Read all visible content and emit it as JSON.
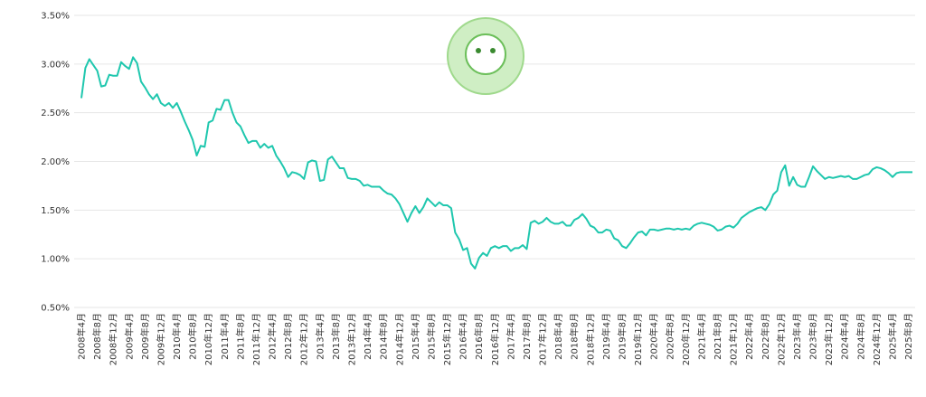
{
  "chart_data": {
    "type": "line",
    "categories": [
      "2008年4月",
      null,
      null,
      null,
      "2008年8月",
      null,
      null,
      null,
      "2008年12月",
      null,
      null,
      null,
      "2009年4月",
      null,
      null,
      null,
      "2009年8月",
      null,
      null,
      null,
      "2009年12月",
      null,
      null,
      null,
      "2010年4月",
      null,
      null,
      null,
      "2010年8月",
      null,
      null,
      null,
      "2010年12月",
      null,
      null,
      null,
      "2011年4月",
      null,
      null,
      null,
      "2011年8月",
      null,
      null,
      null,
      "2011年12月",
      null,
      null,
      null,
      "2012年4月",
      null,
      null,
      null,
      "2012年8月",
      null,
      null,
      null,
      "2012年12月",
      null,
      null,
      null,
      "2013年4月",
      null,
      null,
      null,
      "2013年8月",
      null,
      null,
      null,
      "2013年12月",
      null,
      null,
      null,
      "2014年4月",
      null,
      null,
      null,
      "2014年8月",
      null,
      null,
      null,
      "2014年12月",
      null,
      null,
      null,
      "2015年4月",
      null,
      null,
      null,
      "2015年8月",
      null,
      null,
      null,
      "2015年12月",
      null,
      null,
      null,
      "2016年4月",
      null,
      null,
      null,
      "2016年8月",
      null,
      null,
      null,
      "2016年12月",
      null,
      null,
      null,
      "2017年4月",
      null,
      null,
      null,
      "2017年8月",
      null,
      null,
      null,
      "2017年12月",
      null,
      null,
      null,
      "2018年4月",
      null,
      null,
      null,
      "2018年8月",
      null,
      null,
      null,
      "2018年12月",
      null,
      null,
      null,
      "2019年4月",
      null,
      null,
      null,
      "2019年8月",
      null,
      null,
      null,
      "2019年12月",
      null,
      null,
      null,
      "2020年4月",
      null,
      null,
      null,
      "2020年8月",
      null,
      null,
      null,
      "2020年12月",
      null,
      null,
      null,
      "2021年4月",
      null,
      null,
      null,
      "2021年8月",
      null,
      null,
      null,
      "2021年12月",
      null,
      null,
      null,
      "2022年4月",
      null,
      null,
      null,
      "2022年8月",
      null,
      null,
      null,
      "2022年12月",
      null,
      null,
      null,
      "2023年4月",
      null,
      null,
      null,
      "2023年8月",
      null,
      null,
      null,
      "2023年12月",
      null,
      null,
      null,
      "2024年4月",
      null,
      null,
      null,
      "2024年8月",
      null,
      null,
      null,
      "2024年12月",
      null,
      null,
      null,
      "2025年4月",
      null,
      null,
      null,
      "2025年8月",
      null
    ],
    "values": [
      2.65,
      2.96,
      3.05,
      2.99,
      2.93,
      2.77,
      2.78,
      2.89,
      2.88,
      2.88,
      3.02,
      2.98,
      2.95,
      3.07,
      3.01,
      2.82,
      2.76,
      2.69,
      2.64,
      2.69,
      2.6,
      2.57,
      2.6,
      2.55,
      2.6,
      2.51,
      2.41,
      2.32,
      2.22,
      2.06,
      2.16,
      2.15,
      2.4,
      2.42,
      2.54,
      2.53,
      2.63,
      2.63,
      2.5,
      2.4,
      2.36,
      2.27,
      2.19,
      2.21,
      2.21,
      2.14,
      2.18,
      2.14,
      2.16,
      2.06,
      2.0,
      1.93,
      1.84,
      1.89,
      1.88,
      1.86,
      1.82,
      1.99,
      2.01,
      2.0,
      1.8,
      1.81,
      2.02,
      2.05,
      1.99,
      1.93,
      1.93,
      1.83,
      1.82,
      1.82,
      1.8,
      1.75,
      1.76,
      1.74,
      1.74,
      1.74,
      1.7,
      1.67,
      1.66,
      1.62,
      1.56,
      1.47,
      1.38,
      1.47,
      1.54,
      1.47,
      1.53,
      1.62,
      1.58,
      1.54,
      1.58,
      1.55,
      1.55,
      1.52,
      1.27,
      1.2,
      1.09,
      1.11,
      0.95,
      0.9,
      1.01,
      1.06,
      1.03,
      1.11,
      1.13,
      1.11,
      1.13,
      1.13,
      1.08,
      1.11,
      1.11,
      1.14,
      1.1,
      1.37,
      1.39,
      1.36,
      1.38,
      1.42,
      1.38,
      1.36,
      1.36,
      1.38,
      1.34,
      1.34,
      1.4,
      1.42,
      1.46,
      1.41,
      1.34,
      1.32,
      1.27,
      1.27,
      1.3,
      1.29,
      1.21,
      1.19,
      1.13,
      1.11,
      1.16,
      1.22,
      1.27,
      1.28,
      1.24,
      1.3,
      1.3,
      1.29,
      1.3,
      1.31,
      1.31,
      1.3,
      1.31,
      1.3,
      1.31,
      1.3,
      1.34,
      1.36,
      1.37,
      1.36,
      1.35,
      1.33,
      1.29,
      1.3,
      1.33,
      1.34,
      1.32,
      1.36,
      1.42,
      1.45,
      1.48,
      1.5,
      1.52,
      1.53,
      1.5,
      1.56,
      1.66,
      1.7,
      1.89,
      1.96,
      1.75,
      1.84,
      1.76,
      1.74,
      1.74,
      1.84,
      1.95,
      1.9,
      1.86,
      1.82,
      1.84,
      1.83,
      1.84,
      1.85,
      1.84,
      1.85,
      1.82,
      1.82,
      1.84,
      1.86,
      1.87,
      1.92,
      1.94,
      1.93,
      1.91,
      1.88,
      1.84,
      1.88,
      1.89,
      1.89,
      1.89,
      1.89
    ],
    "color": "#1fc7ae",
    "ylim": [
      0.5,
      3.5
    ],
    "yticks": [
      {
        "value": 0.5,
        "label": "0.50%"
      },
      {
        "value": 1.0,
        "label": "1.00%"
      },
      {
        "value": 1.5,
        "label": "1.50%"
      },
      {
        "value": 2.0,
        "label": "2.00%"
      },
      {
        "value": 2.5,
        "label": "2.50%"
      },
      {
        "value": 3.0,
        "label": "3.00%"
      },
      {
        "value": 3.5,
        "label": "3.50%"
      }
    ],
    "grid": true
  }
}
